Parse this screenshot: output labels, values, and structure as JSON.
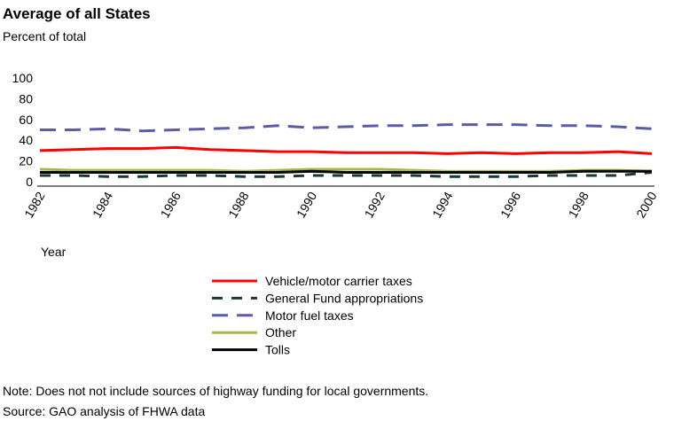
{
  "title": "Average of all States",
  "subtitle": "Percent of total",
  "note": "Note: Does not not include sources of highway funding for local governments.",
  "source": "Source: GAO analysis of FHWA data",
  "chart_data": {
    "type": "line",
    "xlabel": "Year",
    "ylabel": "Percent of total",
    "ylim": [
      0,
      100
    ],
    "xlim": [
      1982,
      2000
    ],
    "yticks": [
      "0",
      "20",
      "40",
      "60",
      "80",
      "100"
    ],
    "xticks": [
      "1982",
      "1984",
      "1986",
      "1988",
      "1990",
      "1992",
      "1994",
      "1996",
      "1998",
      "2000"
    ],
    "grid": false,
    "legend_placement": "bottom",
    "x": [
      1982,
      1983,
      1984,
      1985,
      1986,
      1987,
      1988,
      1989,
      1990,
      1991,
      1992,
      1993,
      1994,
      1995,
      1996,
      1997,
      1998,
      1999,
      2000
    ],
    "series": [
      {
        "name": "Vehicle/motor carrier taxes",
        "color": "#ff0000",
        "dash": "solid",
        "values": [
          30,
          31,
          32,
          32,
          33,
          31,
          30,
          29,
          29,
          28,
          28,
          28,
          27,
          28,
          27,
          28,
          28,
          29,
          27
        ]
      },
      {
        "name": "General Fund appropriations",
        "color": "#1a3a2a",
        "dash": "dashed",
        "values": [
          6,
          6,
          5,
          5,
          6,
          6,
          5,
          5,
          6,
          6,
          6,
          6,
          5,
          5,
          5,
          6,
          6,
          6,
          9
        ]
      },
      {
        "name": "Motor fuel taxes",
        "color": "#5b5ba8",
        "dash": "dashed",
        "values": [
          50,
          50,
          51,
          49,
          50,
          51,
          52,
          54,
          52,
          53,
          54,
          54,
          55,
          55,
          55,
          54,
          54,
          53,
          51
        ]
      },
      {
        "name": "Other",
        "color": "#a4b84a",
        "dash": "solid",
        "values": [
          12,
          11,
          11,
          11,
          11,
          11,
          10,
          11,
          12,
          12,
          12,
          11,
          10,
          10,
          10,
          10,
          11,
          11,
          10
        ]
      },
      {
        "name": "Tolls",
        "color": "#000000",
        "dash": "solid",
        "values": [
          9,
          9,
          9,
          9,
          9,
          9,
          9,
          9,
          10,
          9,
          9,
          9,
          9,
          9,
          9,
          9,
          10,
          10,
          10
        ]
      }
    ]
  }
}
